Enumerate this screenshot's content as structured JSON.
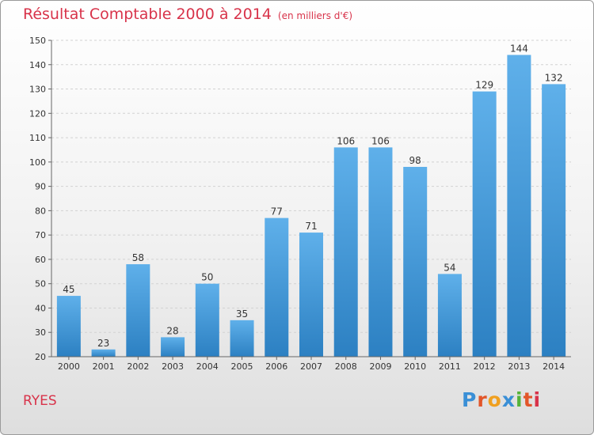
{
  "title": "Résultat Comptable 2000 à 2014",
  "subtitle": "(en milliers d'€)",
  "place": "RYES",
  "logo_text": "Proxiti",
  "colors": {
    "title": "#d8334a",
    "bar_top": "#5fb0ea",
    "bar_bottom": "#2c80c2"
  },
  "chart_data": {
    "type": "bar",
    "categories": [
      "2000",
      "2001",
      "2002",
      "2003",
      "2004",
      "2005",
      "2006",
      "2007",
      "2008",
      "2009",
      "2010",
      "2011",
      "2012",
      "2013",
      "2014"
    ],
    "values": [
      45,
      23,
      58,
      28,
      50,
      35,
      77,
      71,
      106,
      106,
      98,
      54,
      129,
      144,
      132
    ],
    "ylim": [
      20,
      150
    ],
    "yticks": [
      20,
      30,
      40,
      50,
      60,
      70,
      80,
      90,
      100,
      110,
      120,
      130,
      140,
      150
    ],
    "grid": true,
    "xlabel": "",
    "ylabel": ""
  }
}
